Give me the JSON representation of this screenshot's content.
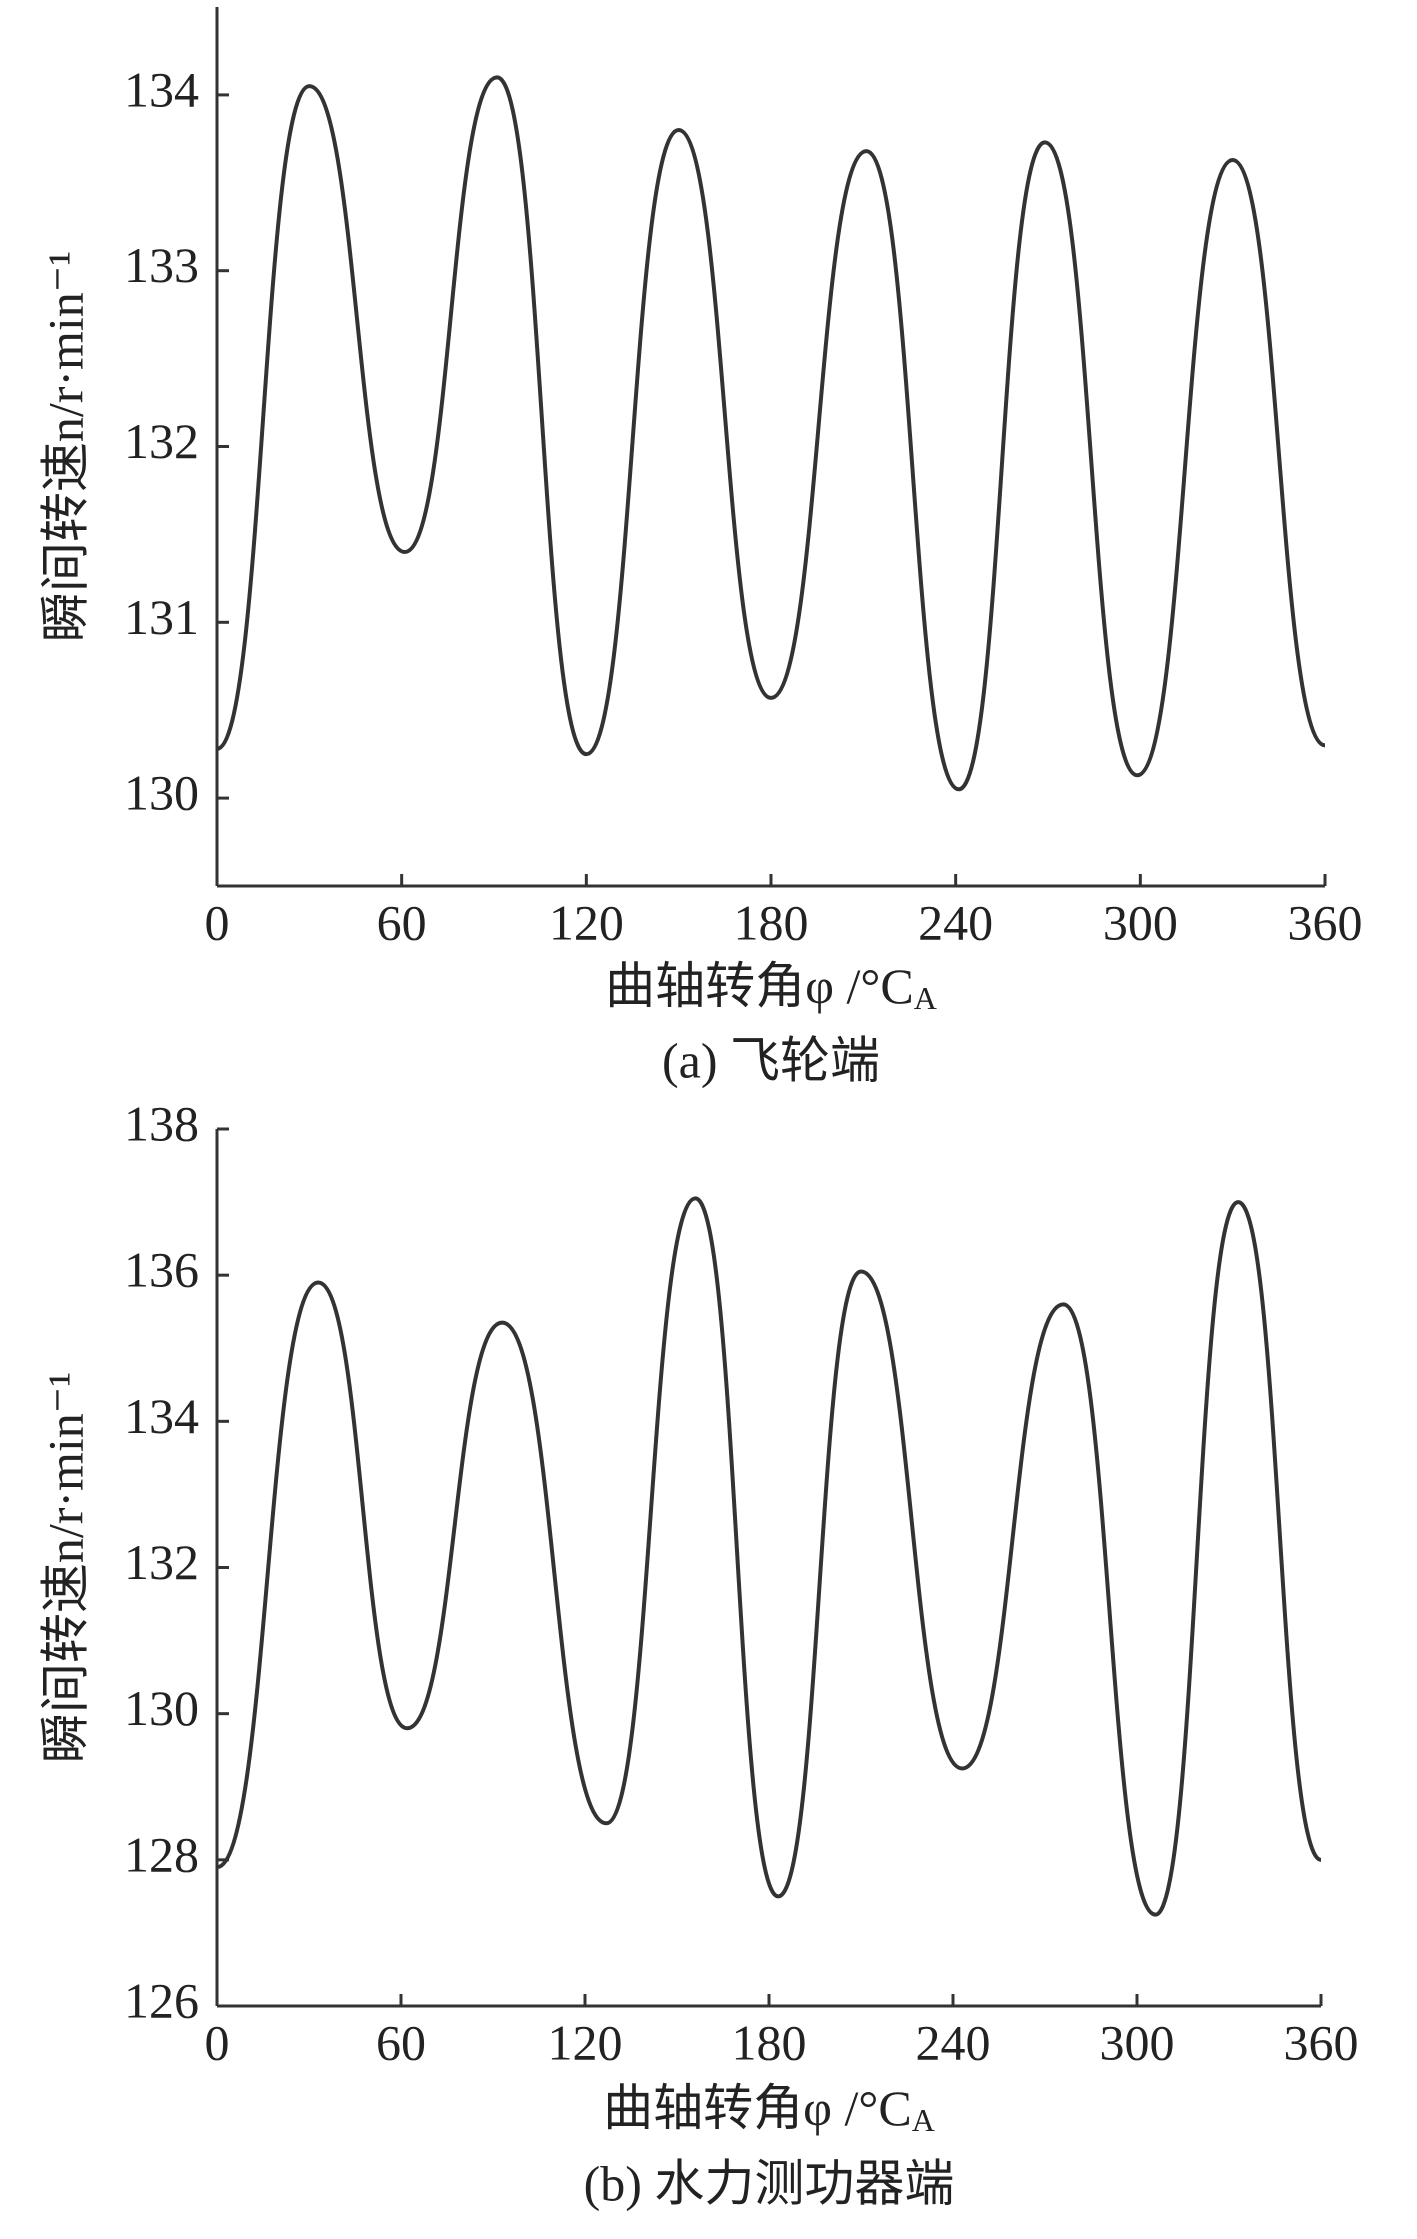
{
  "chart_data": [
    {
      "type": "line",
      "caption": "(a) 飞轮端",
      "y_label": "瞬间转速n/r·min⁻¹",
      "x_label": "曲轴转角φ /°C",
      "x_label_sub": "A",
      "x": [
        0,
        30,
        61,
        91,
        120,
        150,
        180,
        211,
        241,
        269,
        299,
        330,
        360
      ],
      "series": [
        {
          "color": "#333333",
          "values": [
            130.28,
            134.05,
            131.4,
            134.1,
            130.25,
            133.8,
            130.57,
            133.68,
            130.05,
            133.73,
            130.13,
            133.63,
            130.3
          ]
        }
      ],
      "xlim": [
        0,
        360
      ],
      "xticks": [
        0,
        60,
        120,
        180,
        240,
        300,
        360
      ],
      "ylim": [
        129.5,
        134.5
      ],
      "yticks": [
        130,
        131,
        132,
        133,
        134
      ]
    },
    {
      "type": "line",
      "caption": "(b) 水力测功器端",
      "y_label": "瞬间转速n/r·min⁻¹",
      "x_label": "曲轴转角φ /°C",
      "x_label_sub": "A",
      "x": [
        0,
        33,
        62,
        93,
        127,
        156,
        183,
        210,
        243,
        276,
        306,
        333,
        360
      ],
      "series": [
        {
          "color": "#333333",
          "values": [
            127.9,
            135.9,
            129.8,
            135.35,
            128.5,
            137.05,
            127.5,
            136.05,
            129.25,
            135.6,
            127.25,
            137.0,
            128.0
          ]
        }
      ],
      "xlim": [
        0,
        360
      ],
      "xticks": [
        0,
        60,
        120,
        180,
        240,
        300,
        360
      ],
      "ylim": [
        126,
        138
      ],
      "yticks": [
        126,
        128,
        130,
        132,
        134,
        136,
        138
      ]
    }
  ]
}
